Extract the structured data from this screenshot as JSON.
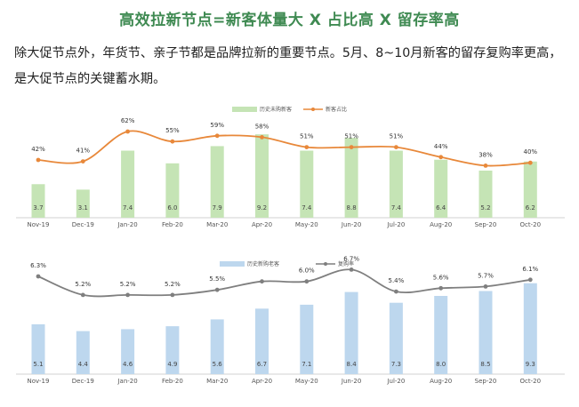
{
  "header": {
    "title": "高效拉新节点=新客体量大 X 占比高 X 留存率高",
    "description": "除大促节点外，年货节、亲子节都是品牌拉新的重要节点。5月、8~10月新客的留存复购率更高，是大促节点的关键蓄水期。"
  },
  "colors": {
    "title": "#3f8a52",
    "bar_green": "#c5e4b5",
    "line_orange": "#e8883a",
    "bar_blue": "#bdd7ee",
    "line_gray": "#7f7f7f"
  },
  "chart_data": [
    {
      "type": "bar",
      "categories": [
        "Nov-19",
        "Dec-19",
        "Jan-20",
        "Feb-20",
        "Mar-20",
        "Apr-20",
        "May-20",
        "Jun-20",
        "Jul-20",
        "Aug-20",
        "Sep-20",
        "Oct-20"
      ],
      "series": [
        {
          "name": "历史未购新客",
          "type": "bar",
          "values": [
            3.7,
            3.1,
            7.4,
            6.0,
            7.9,
            9.2,
            7.4,
            8.8,
            7.4,
            6.4,
            5.2,
            6.2
          ],
          "labels": [
            "3.7",
            "3.1",
            "7.4",
            "6.0",
            "7.9",
            "9.2",
            "7.4",
            "8.8",
            "7.4",
            "6.4",
            "5.2",
            "6.2"
          ]
        },
        {
          "name": "新客占比",
          "type": "line",
          "values": [
            42,
            41,
            62,
            55,
            59,
            58,
            51,
            51,
            51,
            44,
            38,
            40
          ],
          "labels": [
            "42%",
            "41%",
            "62%",
            "55%",
            "59%",
            "58%",
            "51%",
            "51%",
            "51%",
            "44%",
            "38%",
            "40%"
          ]
        }
      ],
      "legend": "top"
    },
    {
      "type": "bar",
      "categories": [
        "Nov-19",
        "Dec-19",
        "Jan-20",
        "Feb-20",
        "Mar-20",
        "Apr-20",
        "May-20",
        "Jun-20",
        "Jul-20",
        "Aug-20",
        "Sep-20",
        "Oct-20"
      ],
      "series": [
        {
          "name": "历史新购老客",
          "type": "bar",
          "values": [
            5.1,
            4.4,
            4.6,
            4.9,
            5.6,
            6.7,
            7.1,
            8.4,
            7.3,
            8.0,
            8.5,
            9.3
          ],
          "labels": [
            "5.1",
            "4.4",
            "4.6",
            "4.9",
            "5.6",
            "6.7",
            "7.1",
            "8.4",
            "7.3",
            "8.0",
            "8.5",
            "9.3"
          ]
        },
        {
          "name": "复购率",
          "type": "line",
          "values": [
            6.3,
            5.2,
            5.2,
            5.2,
            5.5,
            6.0,
            6.0,
            6.7,
            5.4,
            5.6,
            5.7,
            6.1
          ],
          "labels": [
            "6.3%",
            "5.2%",
            "5.2%",
            "5.2%",
            "5.5%",
            "",
            "6.0%",
            "6.7%",
            "5.4%",
            "5.6%",
            "5.7%",
            "6.1%"
          ]
        }
      ],
      "legend": "top"
    }
  ]
}
